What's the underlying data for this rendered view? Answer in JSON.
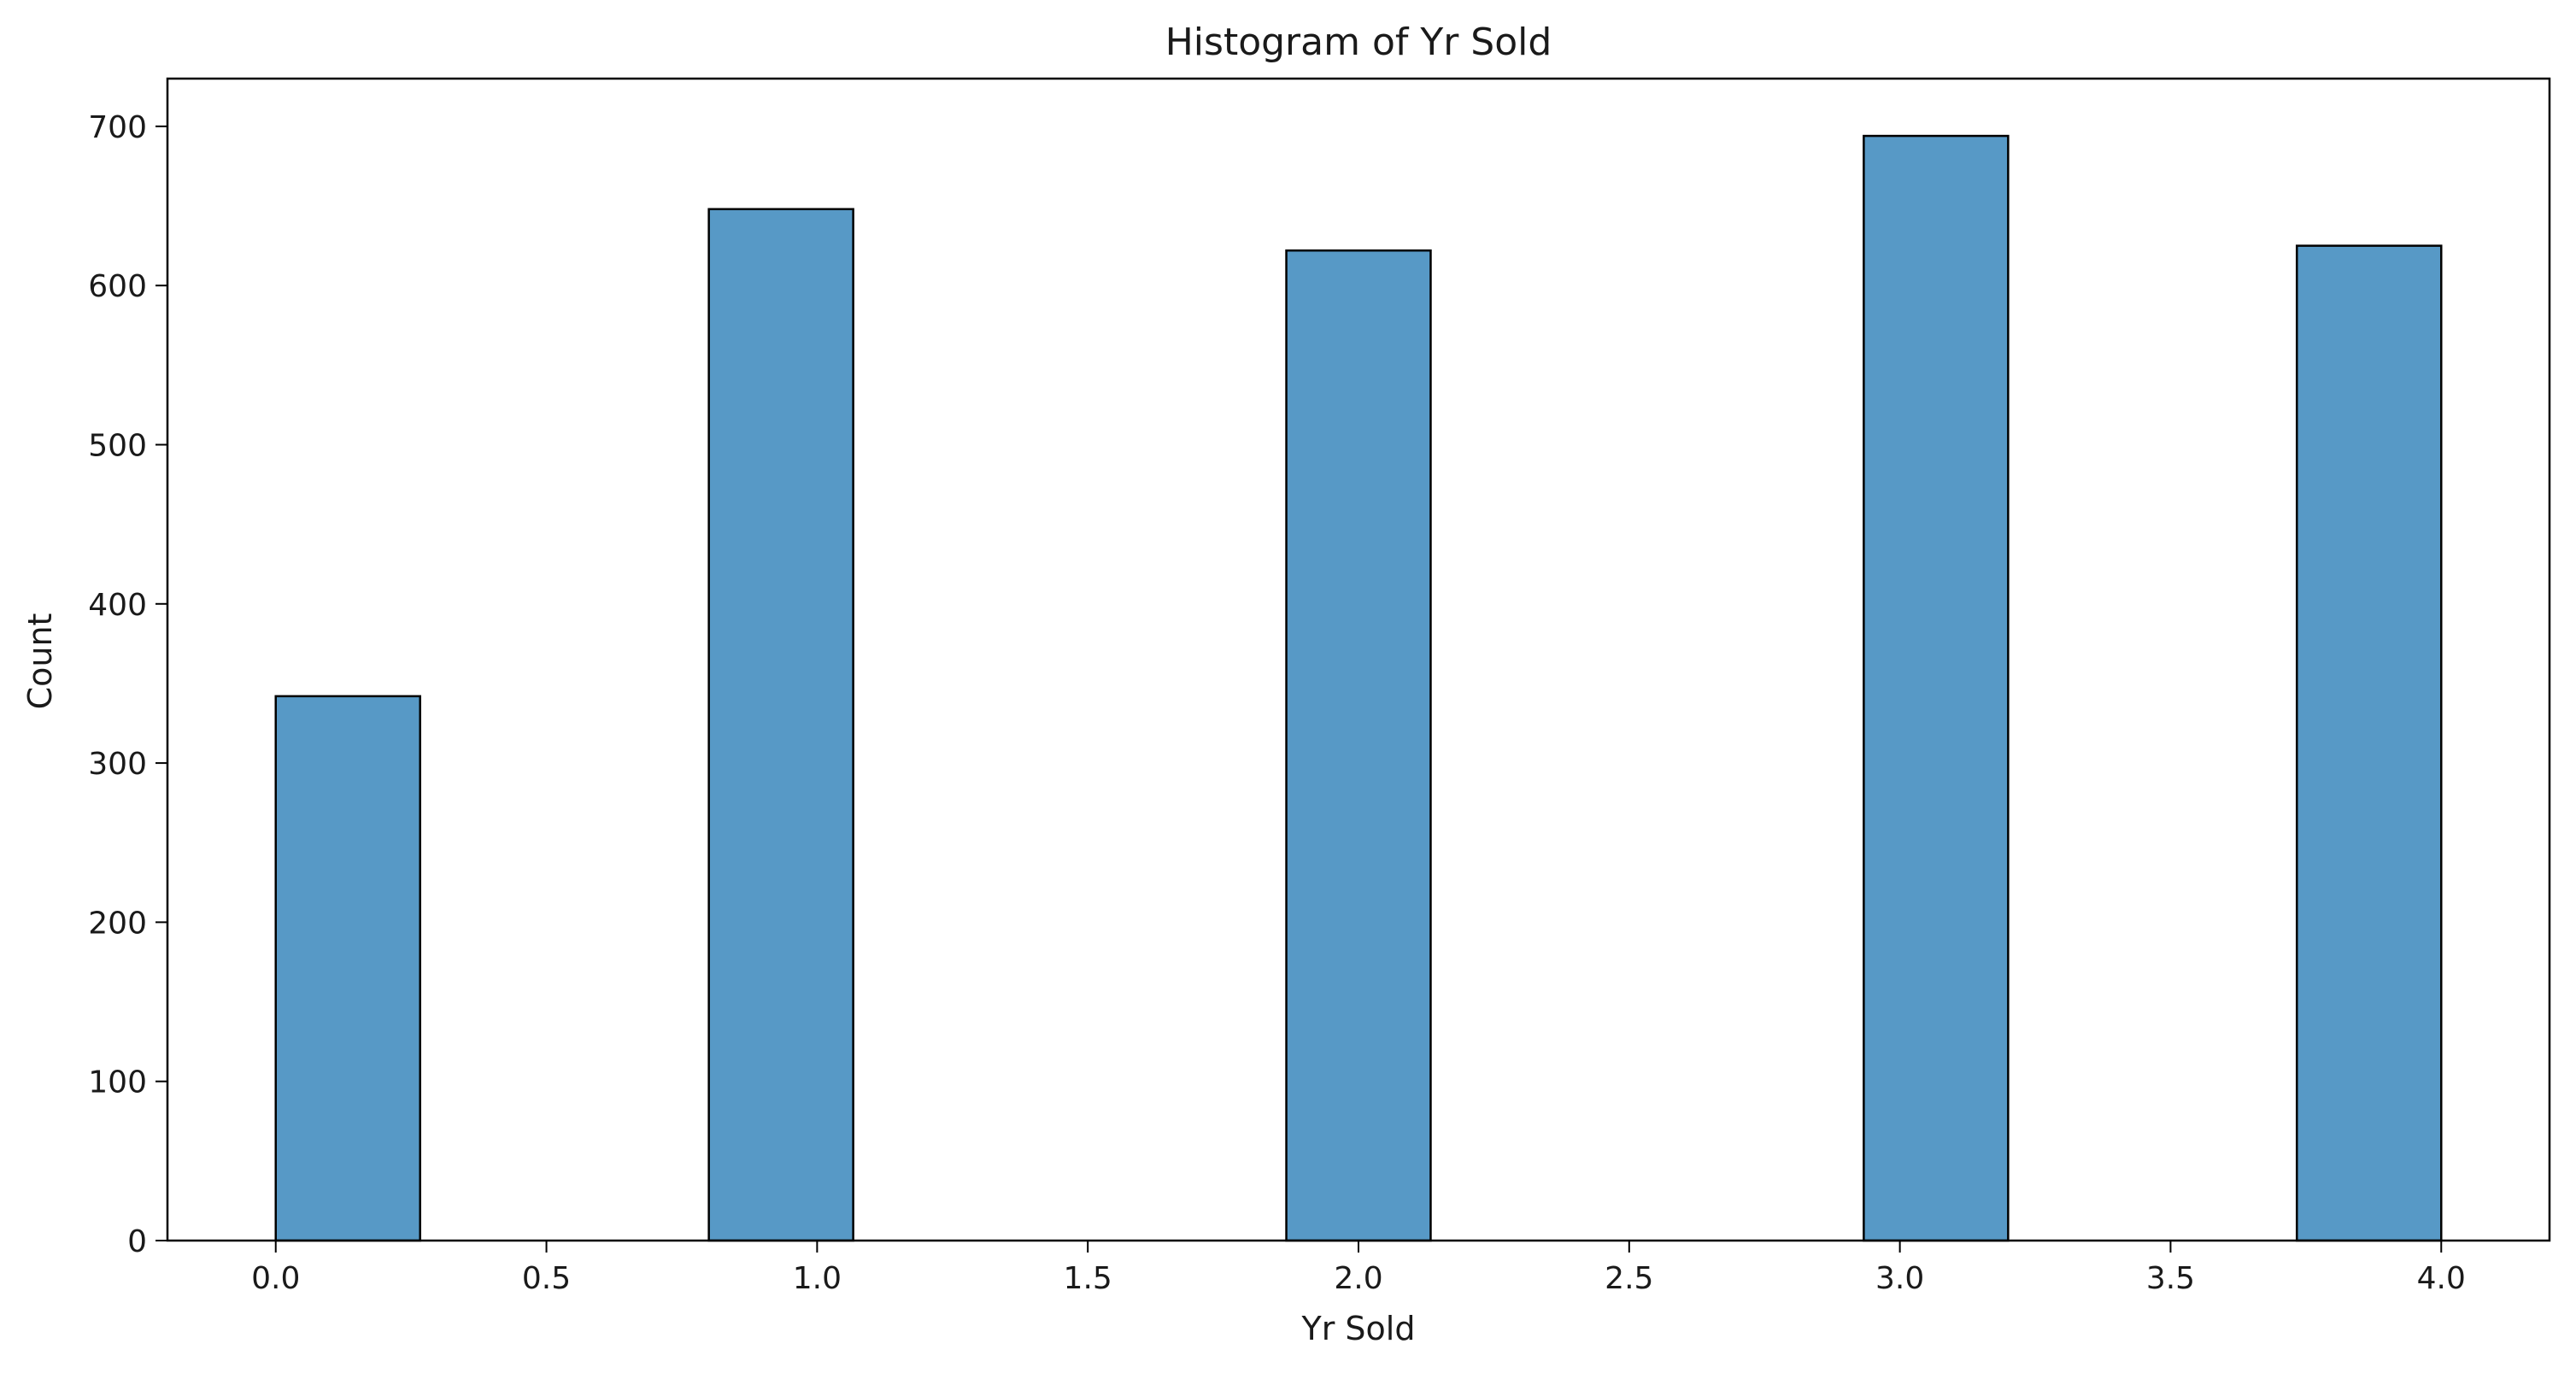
{
  "chart_data": {
    "type": "bar",
    "title": "Histogram of Yr Sold",
    "xlabel": "Yr Sold",
    "ylabel": "Count",
    "xlim": [
      -0.2,
      4.2
    ],
    "ylim": [
      0,
      730
    ],
    "x_ticks": [
      "0.0",
      "0.5",
      "1.0",
      "1.5",
      "2.0",
      "2.5",
      "3.0",
      "3.5",
      "4.0"
    ],
    "x_tick_values": [
      0,
      0.5,
      1,
      1.5,
      2,
      2.5,
      3,
      3.5,
      4
    ],
    "y_ticks": [
      "0",
      "100",
      "200",
      "300",
      "400",
      "500",
      "600",
      "700"
    ],
    "y_tick_values": [
      0,
      100,
      200,
      300,
      400,
      500,
      600,
      700
    ],
    "bins": [
      {
        "x0": 0.0,
        "x1": 0.2667,
        "count": 342
      },
      {
        "x0": 0.2667,
        "x1": 0.5333,
        "count": 0
      },
      {
        "x0": 0.5333,
        "x1": 0.8,
        "count": 0
      },
      {
        "x0": 0.8,
        "x1": 1.0667,
        "count": 648
      },
      {
        "x0": 1.0667,
        "x1": 1.3333,
        "count": 0
      },
      {
        "x0": 1.3333,
        "x1": 1.6,
        "count": 0
      },
      {
        "x0": 1.6,
        "x1": 1.8667,
        "count": 0
      },
      {
        "x0": 1.8667,
        "x1": 2.1333,
        "count": 622
      },
      {
        "x0": 2.1333,
        "x1": 2.4,
        "count": 0
      },
      {
        "x0": 2.4,
        "x1": 2.6667,
        "count": 0
      },
      {
        "x0": 2.6667,
        "x1": 2.9333,
        "count": 0
      },
      {
        "x0": 2.9333,
        "x1": 3.2,
        "count": 694
      },
      {
        "x0": 3.2,
        "x1": 3.4667,
        "count": 0
      },
      {
        "x0": 3.4667,
        "x1": 3.7333,
        "count": 0
      },
      {
        "x0": 3.7333,
        "x1": 4.0,
        "count": 625
      }
    ],
    "bar_color": "#5799c6",
    "edge_color": "#000000",
    "grid": false,
    "legend": "none"
  }
}
